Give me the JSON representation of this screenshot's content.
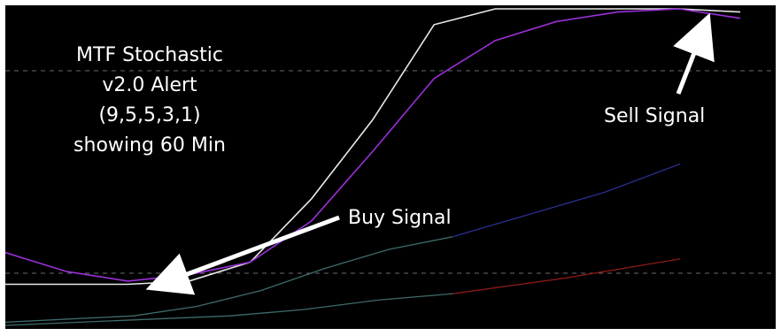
{
  "annotations": {
    "title_lines": [
      "MTF Stochastic",
      "v2.0 Alert",
      "(9,5,5,3,1)",
      "showing 60 Min"
    ],
    "buy_signal": "Buy Signal",
    "sell_signal": "Sell Signal"
  },
  "colors": {
    "background": "#000000",
    "grid": "#6a6a6a",
    "white_line": "#e8e8e8",
    "purple_line": "#9b30d9",
    "teal_line": "#3f6b6b",
    "blue_line": "#2b2f8f",
    "red_line": "#8b1a1a",
    "arrow": "#ffffff"
  },
  "chart_data": {
    "type": "line",
    "reference_lines": [
      "upper-dashed",
      "lower-dashed"
    ],
    "series": [
      {
        "color": "#e8e8e8",
        "values": [
          0.13,
          0.13,
          0.13,
          0.14,
          0.2,
          0.4,
          0.65,
          0.95,
          1.0,
          1.0,
          1.0,
          1.0,
          0.99
        ]
      },
      {
        "color": "#9b30d9",
        "values": [
          0.23,
          0.17,
          0.14,
          0.16,
          0.2,
          0.33,
          0.55,
          0.78,
          0.9,
          0.96,
          0.99,
          1.0,
          0.97
        ]
      },
      {
        "color": "#3f6b6b",
        "values": [
          0.01,
          0.02,
          0.03,
          0.06,
          0.11,
          0.18,
          0.24,
          0.28
        ]
      },
      {
        "color": "#2b2f8f",
        "values": [
          0.28,
          0.35,
          0.42,
          0.51
        ]
      },
      {
        "color": "#3f6b6b",
        "values": [
          0.0,
          0.01,
          0.02,
          0.03,
          0.05,
          0.08,
          0.1
        ]
      },
      {
        "color": "#8b1a1a",
        "values": [
          0.1,
          0.15,
          0.21
        ]
      }
    ]
  }
}
